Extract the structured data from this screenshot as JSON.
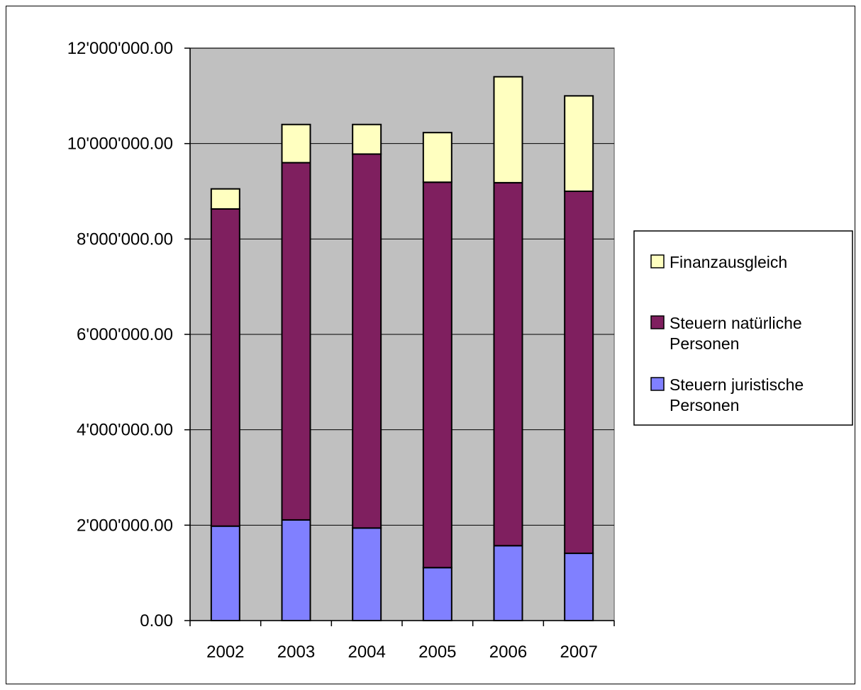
{
  "chart_data": {
    "type": "bar",
    "stacked": true,
    "title": "",
    "xlabel": "",
    "ylabel": "",
    "categories": [
      "2002",
      "2003",
      "2004",
      "2005",
      "2006",
      "2007"
    ],
    "series": [
      {
        "name": "Steuern juristische Personen",
        "color": "#8080ff",
        "values": [
          1980000,
          2110000,
          1940000,
          1110000,
          1570000,
          1410000
        ]
      },
      {
        "name": "Steuern natürliche Personen",
        "color": "#7f1f5f",
        "values": [
          6650000,
          7490000,
          7840000,
          8080000,
          7610000,
          7590000
        ]
      },
      {
        "name": "Finanzausgleich",
        "color": "#ffffc0",
        "values": [
          420000,
          800000,
          620000,
          1040000,
          2220000,
          2000000
        ]
      }
    ],
    "ylim": [
      0,
      12000000
    ],
    "yticks": [
      0,
      2000000,
      4000000,
      6000000,
      8000000,
      10000000,
      12000000
    ],
    "ytick_labels": [
      "0.00",
      "2'000'000.00",
      "4'000'000.00",
      "6'000'000.00",
      "8'000'000.00",
      "10'000'000.00",
      "12'000'000.00"
    ],
    "legend_order": [
      "Finanzausgleich",
      "Steuern natürliche Personen",
      "Steuern juristische Personen"
    ],
    "legend_position": "right",
    "grid": true,
    "plot_background": "#c0c0c0"
  }
}
